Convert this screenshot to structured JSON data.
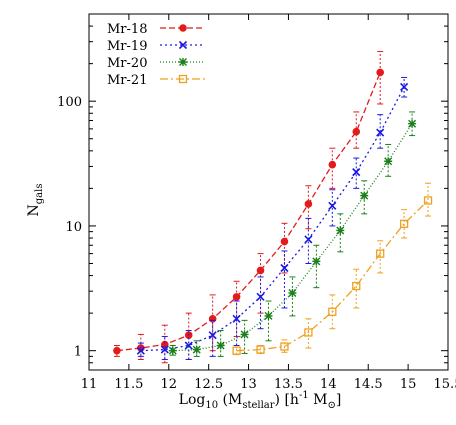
{
  "chart_data": {
    "type": "line",
    "title": "",
    "xlabel": {
      "base": "Log",
      "sub": "10",
      "rest1": " (M",
      "sub2": "stellar",
      "rest2": ") [h",
      "sup": "-1",
      "rest3": " M",
      "sub3": "⊙",
      "rest4": "]"
    },
    "ylabel": {
      "base": "N",
      "sub": "gals"
    },
    "xlim": [
      11,
      15.5
    ],
    "ylim": [
      0.7,
      500
    ],
    "yscale": "log",
    "x_ticks": [
      "11",
      "11.5",
      "12",
      "12.5",
      "13",
      "13.5",
      "14",
      "14.5",
      "15",
      "15.5"
    ],
    "y_ticks": [
      {
        "value": 1,
        "label": "1"
      },
      {
        "value": 10,
        "label": "10"
      },
      {
        "value": 100,
        "label": "100"
      }
    ],
    "legend_position": "top-left",
    "series": [
      {
        "name": "Mr-18",
        "color": "#e41a1c",
        "marker": "circle",
        "dash": "6,3",
        "points": [
          {
            "x": 11.35,
            "y": 1.0,
            "lo": 0.9,
            "hi": 1.1
          },
          {
            "x": 11.65,
            "y": 1.05,
            "lo": 0.85,
            "hi": 1.35
          },
          {
            "x": 11.95,
            "y": 1.12,
            "lo": 0.8,
            "hi": 1.6
          },
          {
            "x": 12.25,
            "y": 1.33,
            "lo": 0.85,
            "hi": 2.0
          },
          {
            "x": 12.55,
            "y": 1.8,
            "lo": 1.0,
            "hi": 2.8
          },
          {
            "x": 12.85,
            "y": 2.7,
            "lo": 1.3,
            "hi": 3.6
          },
          {
            "x": 13.15,
            "y": 4.4,
            "lo": 2.0,
            "hi": 6.0
          },
          {
            "x": 13.45,
            "y": 7.5,
            "lo": 4.2,
            "hi": 10.5
          },
          {
            "x": 13.75,
            "y": 15.0,
            "lo": 9.5,
            "hi": 21.0
          },
          {
            "x": 14.05,
            "y": 31.0,
            "lo": 20.0,
            "hi": 42.0
          },
          {
            "x": 14.35,
            "y": 57.0,
            "lo": 42.0,
            "hi": 82.0
          },
          {
            "x": 14.65,
            "y": 170.0,
            "lo": 95.0,
            "hi": 250.0
          }
        ]
      },
      {
        "name": "Mr-19",
        "color": "#1a1ae6",
        "marker": "cross",
        "dash": "2,3",
        "points": [
          {
            "x": 11.65,
            "y": 1.0,
            "lo": 0.9,
            "hi": 1.15
          },
          {
            "x": 11.95,
            "y": 1.02,
            "lo": 0.85,
            "hi": 1.3
          },
          {
            "x": 12.25,
            "y": 1.1,
            "lo": 0.85,
            "hi": 1.45
          },
          {
            "x": 12.55,
            "y": 1.33,
            "lo": 0.9,
            "hi": 1.75
          },
          {
            "x": 12.85,
            "y": 1.8,
            "lo": 1.1,
            "hi": 2.5
          },
          {
            "x": 13.15,
            "y": 2.7,
            "lo": 1.5,
            "hi": 3.9
          },
          {
            "x": 13.45,
            "y": 4.6,
            "lo": 2.2,
            "hi": 6.3
          },
          {
            "x": 13.75,
            "y": 7.8,
            "lo": 5.0,
            "hi": 11.5
          },
          {
            "x": 14.05,
            "y": 14.5,
            "lo": 10.0,
            "hi": 19.5
          },
          {
            "x": 14.35,
            "y": 27.0,
            "lo": 20.0,
            "hi": 35.0
          },
          {
            "x": 14.65,
            "y": 56.0,
            "lo": 42.0,
            "hi": 78.0
          },
          {
            "x": 14.95,
            "y": 130.0,
            "lo": 108.0,
            "hi": 155.0
          }
        ]
      },
      {
        "name": "Mr-20",
        "color": "#1a801a",
        "marker": "star",
        "dash": "1,2",
        "points": [
          {
            "x": 12.05,
            "y": 1.0,
            "lo": 0.92,
            "hi": 1.1
          },
          {
            "x": 12.35,
            "y": 1.02,
            "lo": 0.9,
            "hi": 1.2
          },
          {
            "x": 12.65,
            "y": 1.1,
            "lo": 0.9,
            "hi": 1.45
          },
          {
            "x": 12.95,
            "y": 1.35,
            "lo": 0.95,
            "hi": 1.75
          },
          {
            "x": 13.25,
            "y": 1.9,
            "lo": 1.2,
            "hi": 2.5
          },
          {
            "x": 13.55,
            "y": 2.9,
            "lo": 1.9,
            "hi": 3.9
          },
          {
            "x": 13.85,
            "y": 5.2,
            "lo": 3.2,
            "hi": 7.0
          },
          {
            "x": 14.15,
            "y": 9.2,
            "lo": 6.2,
            "hi": 12.5
          },
          {
            "x": 14.45,
            "y": 17.5,
            "lo": 12.5,
            "hi": 23.0
          },
          {
            "x": 14.75,
            "y": 33.0,
            "lo": 25.0,
            "hi": 45.0
          },
          {
            "x": 15.05,
            "y": 66.0,
            "lo": 53.0,
            "hi": 82.0
          }
        ]
      },
      {
        "name": "Mr-21",
        "color": "#f0a020",
        "marker": "square",
        "dash": "8,3,2,3",
        "points": [
          {
            "x": 12.85,
            "y": 1.0,
            "lo": 0.93,
            "hi": 1.07
          },
          {
            "x": 13.15,
            "y": 1.02,
            "lo": 0.95,
            "hi": 1.1
          },
          {
            "x": 13.45,
            "y": 1.08,
            "lo": 0.97,
            "hi": 1.22
          },
          {
            "x": 13.75,
            "y": 1.4,
            "lo": 1.05,
            "hi": 1.8
          },
          {
            "x": 14.05,
            "y": 2.05,
            "lo": 1.5,
            "hi": 2.8
          },
          {
            "x": 14.35,
            "y": 3.3,
            "lo": 2.2,
            "hi": 4.5
          },
          {
            "x": 14.65,
            "y": 6.0,
            "lo": 4.2,
            "hi": 7.6
          },
          {
            "x": 14.95,
            "y": 10.4,
            "lo": 8.0,
            "hi": 13.5
          },
          {
            "x": 15.25,
            "y": 16.0,
            "lo": 12.0,
            "hi": 22.0
          }
        ]
      }
    ]
  }
}
